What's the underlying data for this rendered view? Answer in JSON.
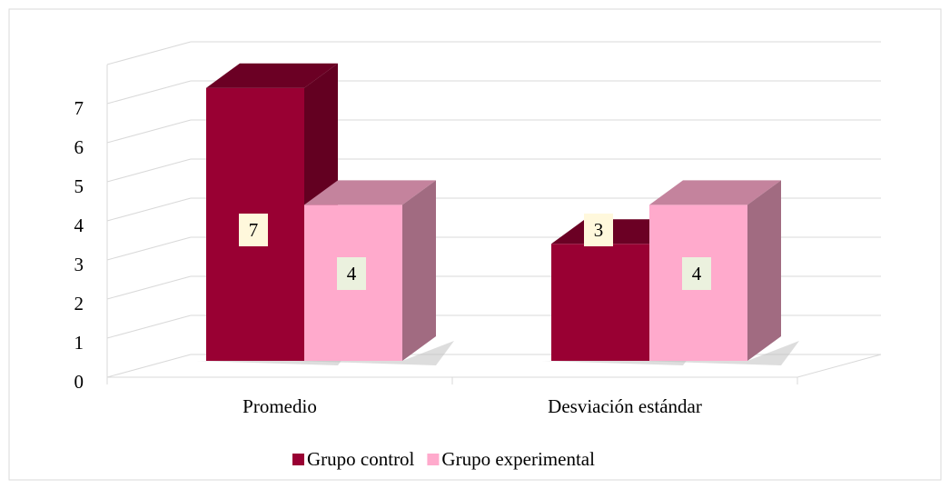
{
  "chart_data": {
    "type": "bar3d",
    "categories": [
      "Promedio",
      "Desviación estándar"
    ],
    "series": [
      {
        "name": "Grupo control",
        "color": "#990033",
        "values": [
          7,
          3
        ]
      },
      {
        "name": "Grupo experimental",
        "color": "#ffaacc",
        "values": [
          4,
          4
        ]
      }
    ],
    "ylim": [
      0,
      8
    ],
    "yticks": [
      0,
      1,
      2,
      3,
      4,
      5,
      6,
      7
    ],
    "grid": true,
    "legend": "bottom"
  }
}
